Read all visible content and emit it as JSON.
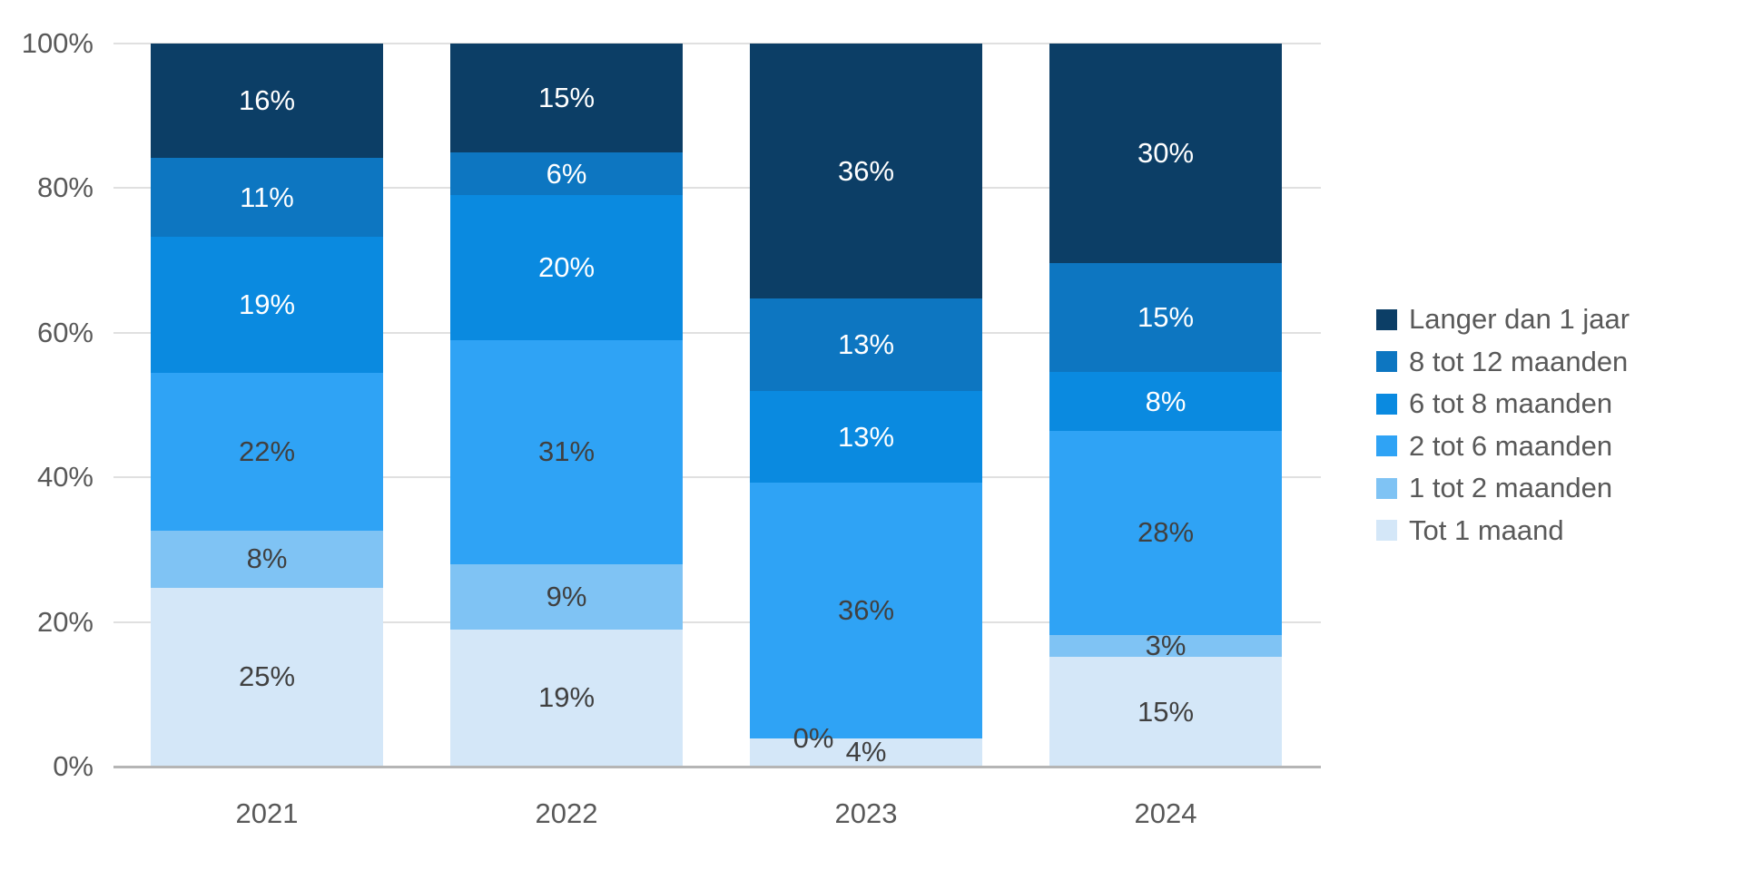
{
  "chart_data": {
    "type": "bar",
    "variant": "stacked-100-percent",
    "title": "",
    "categories": [
      "2021",
      "2022",
      "2023",
      "2024"
    ],
    "series": [
      {
        "name": "Tot 1 maand",
        "color": "#D4E7F8",
        "label_color": "#404040",
        "values": [
          25,
          19,
          4,
          15
        ]
      },
      {
        "name": "1 tot 2 maanden",
        "color": "#7FC3F4",
        "label_color": "#404040",
        "values": [
          8,
          9,
          0,
          3
        ]
      },
      {
        "name": "2 tot 6 maanden",
        "color": "#2FA3F5",
        "label_color": "#404040",
        "values": [
          22,
          31,
          36,
          28
        ]
      },
      {
        "name": "6 tot 8 maanden",
        "color": "#0A8AE0",
        "label_color": "#FFFFFF",
        "values": [
          19,
          20,
          13,
          8
        ]
      },
      {
        "name": "8 tot 12 maanden",
        "color": "#0D76C1",
        "label_color": "#FFFFFF",
        "values": [
          11,
          6,
          13,
          15
        ]
      },
      {
        "name": "Langer dan 1 jaar",
        "color": "#0C3E66",
        "label_color": "#FFFFFF",
        "values": [
          16,
          15,
          36,
          30
        ]
      }
    ],
    "data_label_suffix": "%",
    "y_axis": {
      "min": 0,
      "max": 100,
      "grid": true,
      "ticks": [
        {
          "label": "0%",
          "value": 0
        },
        {
          "label": "20%",
          "value": 20
        },
        {
          "label": "40%",
          "value": 40
        },
        {
          "label": "60%",
          "value": 60
        },
        {
          "label": "80%",
          "value": 80
        },
        {
          "label": "100%",
          "value": 100
        }
      ]
    },
    "x_axis": {
      "tick_labels": [
        "2021",
        "2022",
        "2023",
        "2024"
      ]
    },
    "legend": {
      "position": "right",
      "entries": [
        "Langer dan 1 jaar",
        "8 tot 12 maanden",
        "6 tot 8 maanden",
        "2 tot 6 maanden",
        "1 tot 2 maanden",
        "Tot 1 maand"
      ]
    }
  },
  "styles": {
    "background": "#FFFFFF",
    "grid_color": "#E0E0E0",
    "axis_line_color": "#B5B5B5",
    "axis_text_color": "#595959",
    "legend_text_color": "#595959"
  }
}
